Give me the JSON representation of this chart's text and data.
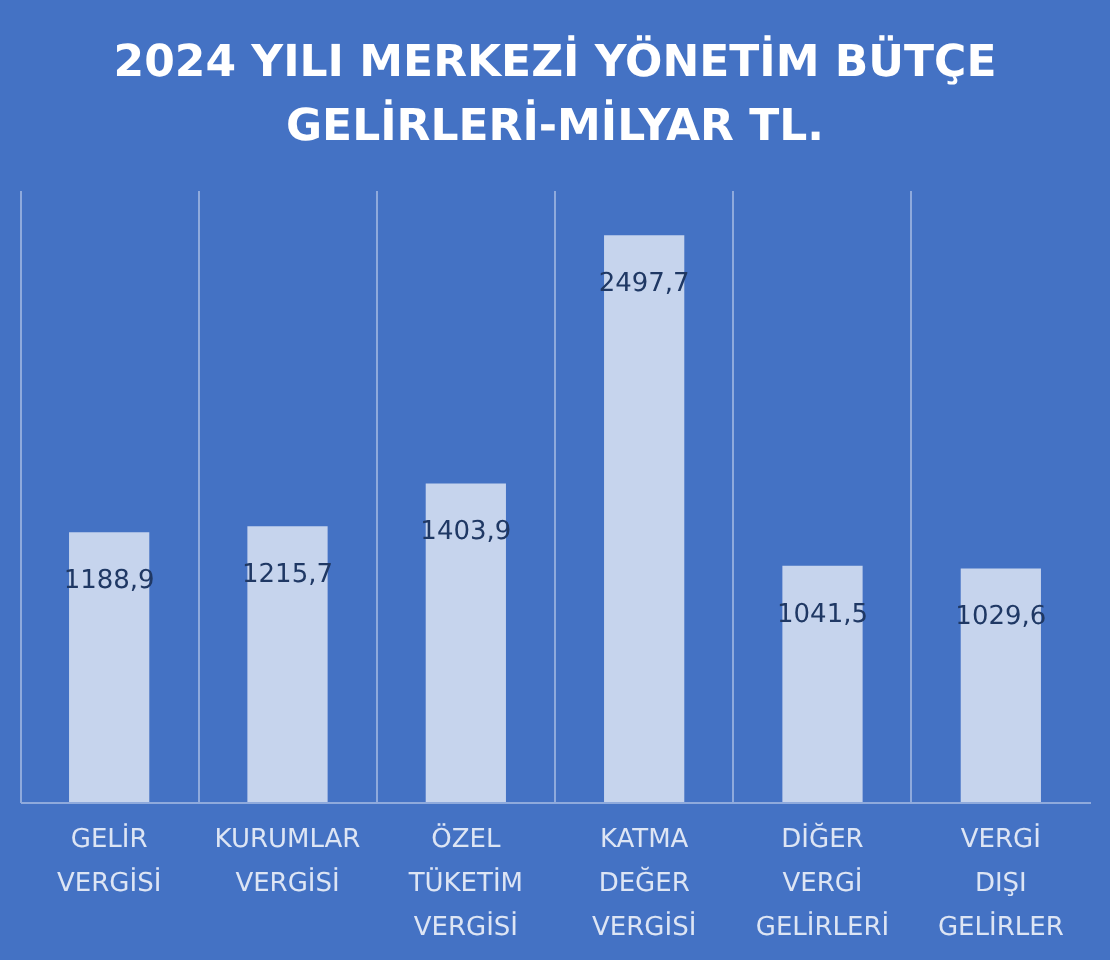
{
  "chart_data": {
    "type": "bar",
    "title": "2024 YILI MERKEZİ YÖNETİM BÜTÇE\nGELİRLERİ-MİLYAR TL.",
    "categories": [
      "GELİR VERGİSİ",
      "KURUMLAR VERGİSİ",
      "ÖZEL TÜKETİM VERGİSİ",
      "KATMA DEĞER VERGİSİ",
      "DİĞER VERGİ GELİRLERİ",
      "VERGİ DIŞI GELİRLER"
    ],
    "values": [
      1188.9,
      1215.7,
      1403.9,
      2497.7,
      1041.5,
      1029.6
    ],
    "value_labels": [
      "1188,9",
      "1215,7",
      "1403,9",
      "2497,7",
      "1041,5",
      "1029,6"
    ],
    "color": "#dde5f4",
    "grid": "x"
  }
}
